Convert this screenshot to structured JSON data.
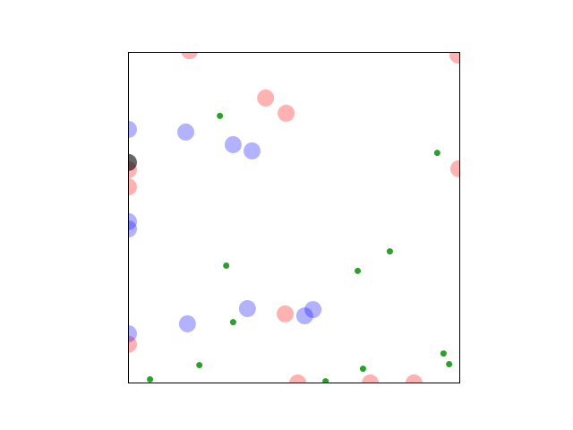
{
  "chart_data": {
    "type": "scatter",
    "xlim": [
      0,
      1
    ],
    "ylim": [
      0,
      1
    ],
    "grid": false,
    "series": [
      {
        "color": "#ff0000",
        "alpha": 0.3,
        "x": [
          0.184,
          0.414,
          0.476,
          0.995,
          0.0,
          0.0,
          0.997,
          0.473,
          0.0,
          0.511,
          0.73,
          0.862
        ],
        "y": [
          1.005,
          0.862,
          0.816,
          0.992,
          0.645,
          0.593,
          0.648,
          0.209,
          0.117,
          0.0,
          0.0,
          0.0
        ]
      },
      {
        "color": "#0000ff",
        "alpha": 0.3,
        "x": [
          0.0,
          0.173,
          0.316,
          0.373,
          0.0,
          0.0,
          0.359,
          0.557,
          0.532,
          0.178,
          0.0
        ],
        "y": [
          0.767,
          0.759,
          0.721,
          0.702,
          0.488,
          0.466,
          0.225,
          0.222,
          0.203,
          0.179,
          0.149
        ]
      },
      {
        "color": "#2ca02c",
        "alpha": 1,
        "x": [
          0.276,
          0.932,
          0.789,
          0.295,
          0.692,
          0.316,
          0.214,
          0.951,
          0.968,
          0.708,
          0.065,
          0.595
        ],
        "y": [
          0.808,
          0.696,
          0.398,
          0.355,
          0.339,
          0.184,
          0.054,
          0.089,
          0.057,
          0.043,
          0.011,
          0.005
        ]
      },
      {
        "color": "#000000",
        "alpha": 0.6,
        "x": [
          0.0
        ],
        "y": [
          0.667
        ]
      }
    ]
  }
}
